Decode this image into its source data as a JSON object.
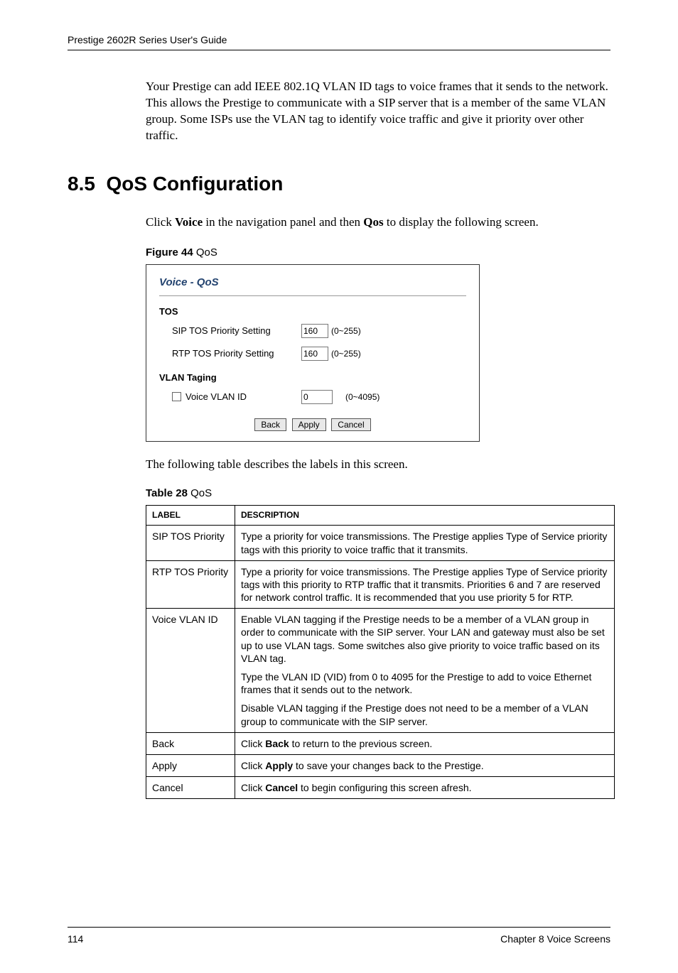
{
  "header": {
    "title": "Prestige 2602R Series User's Guide"
  },
  "intro_para": "Your Prestige can add IEEE 802.1Q VLAN ID tags to voice frames that it sends to the network. This allows the Prestige to communicate with a SIP server that is a member of the same VLAN group. Some ISPs use the VLAN tag to identify voice traffic and give it priority over other traffic.",
  "section": {
    "number": "8.5",
    "title": "QoS Configuration"
  },
  "click_para": {
    "prefix": "Click ",
    "bold1": "Voice",
    "mid": " in the navigation panel and then ",
    "bold2": "Qos",
    "suffix": " to display the following screen."
  },
  "figure": {
    "caption_bold": "Figure 44",
    "caption_rest": "   QoS",
    "title": "Voice - QoS",
    "tos_label": "TOS",
    "sip_tos_label": "SIP TOS Priority Setting",
    "sip_tos_value": "160",
    "sip_tos_range": "(0~255)",
    "rtp_tos_label": "RTP TOS Priority Setting",
    "rtp_tos_value": "160",
    "rtp_tos_range": "(0~255)",
    "vlan_label": "VLAN Taging",
    "voice_vlan_label": "Voice VLAN ID",
    "voice_vlan_value": "0",
    "voice_vlan_range": "(0~4095)",
    "btn_back": "Back",
    "btn_apply": "Apply",
    "btn_cancel": "Cancel"
  },
  "desc_para": "The following table describes the labels in this screen.",
  "table": {
    "caption_bold": "Table 28",
    "caption_rest": "   QoS",
    "header_label": "LABEL",
    "header_desc": "DESCRIPTION",
    "rows": [
      {
        "label": "SIP TOS Priority",
        "desc": [
          "Type a priority for voice transmissions. The Prestige applies Type of Service priority tags with this priority to voice traffic that it transmits."
        ]
      },
      {
        "label": "RTP TOS Priority",
        "desc": [
          "Type a priority for voice transmissions. The Prestige applies Type of Service priority tags with this priority to RTP traffic that it transmits. Priorities 6 and 7 are reserved for network control traffic. It is recommended that you use priority 5 for RTP."
        ]
      },
      {
        "label": "Voice VLAN ID",
        "desc": [
          "Enable VLAN tagging if the Prestige needs to be a member of a VLAN group in order to communicate with the SIP server. Your LAN and gateway must also be set up to use VLAN tags. Some switches also give priority to voice traffic based on its VLAN tag.",
          "Type the VLAN ID (VID) from 0 to 4095 for the Prestige to add to voice Ethernet frames that it sends out to the network.",
          "Disable VLAN tagging if the Prestige does not need to be a member of a VLAN group to communicate with the SIP server."
        ]
      },
      {
        "label": "Back",
        "desc_html": "Click <b>Back</b> to return to the previous screen."
      },
      {
        "label": "Apply",
        "desc_html": "Click <b>Apply</b> to save your changes back to the Prestige."
      },
      {
        "label": "Cancel",
        "desc_html": "Click <b>Cancel</b> to begin configuring this screen afresh."
      }
    ]
  },
  "footer": {
    "page": "114",
    "chapter": "Chapter 8 Voice Screens"
  }
}
